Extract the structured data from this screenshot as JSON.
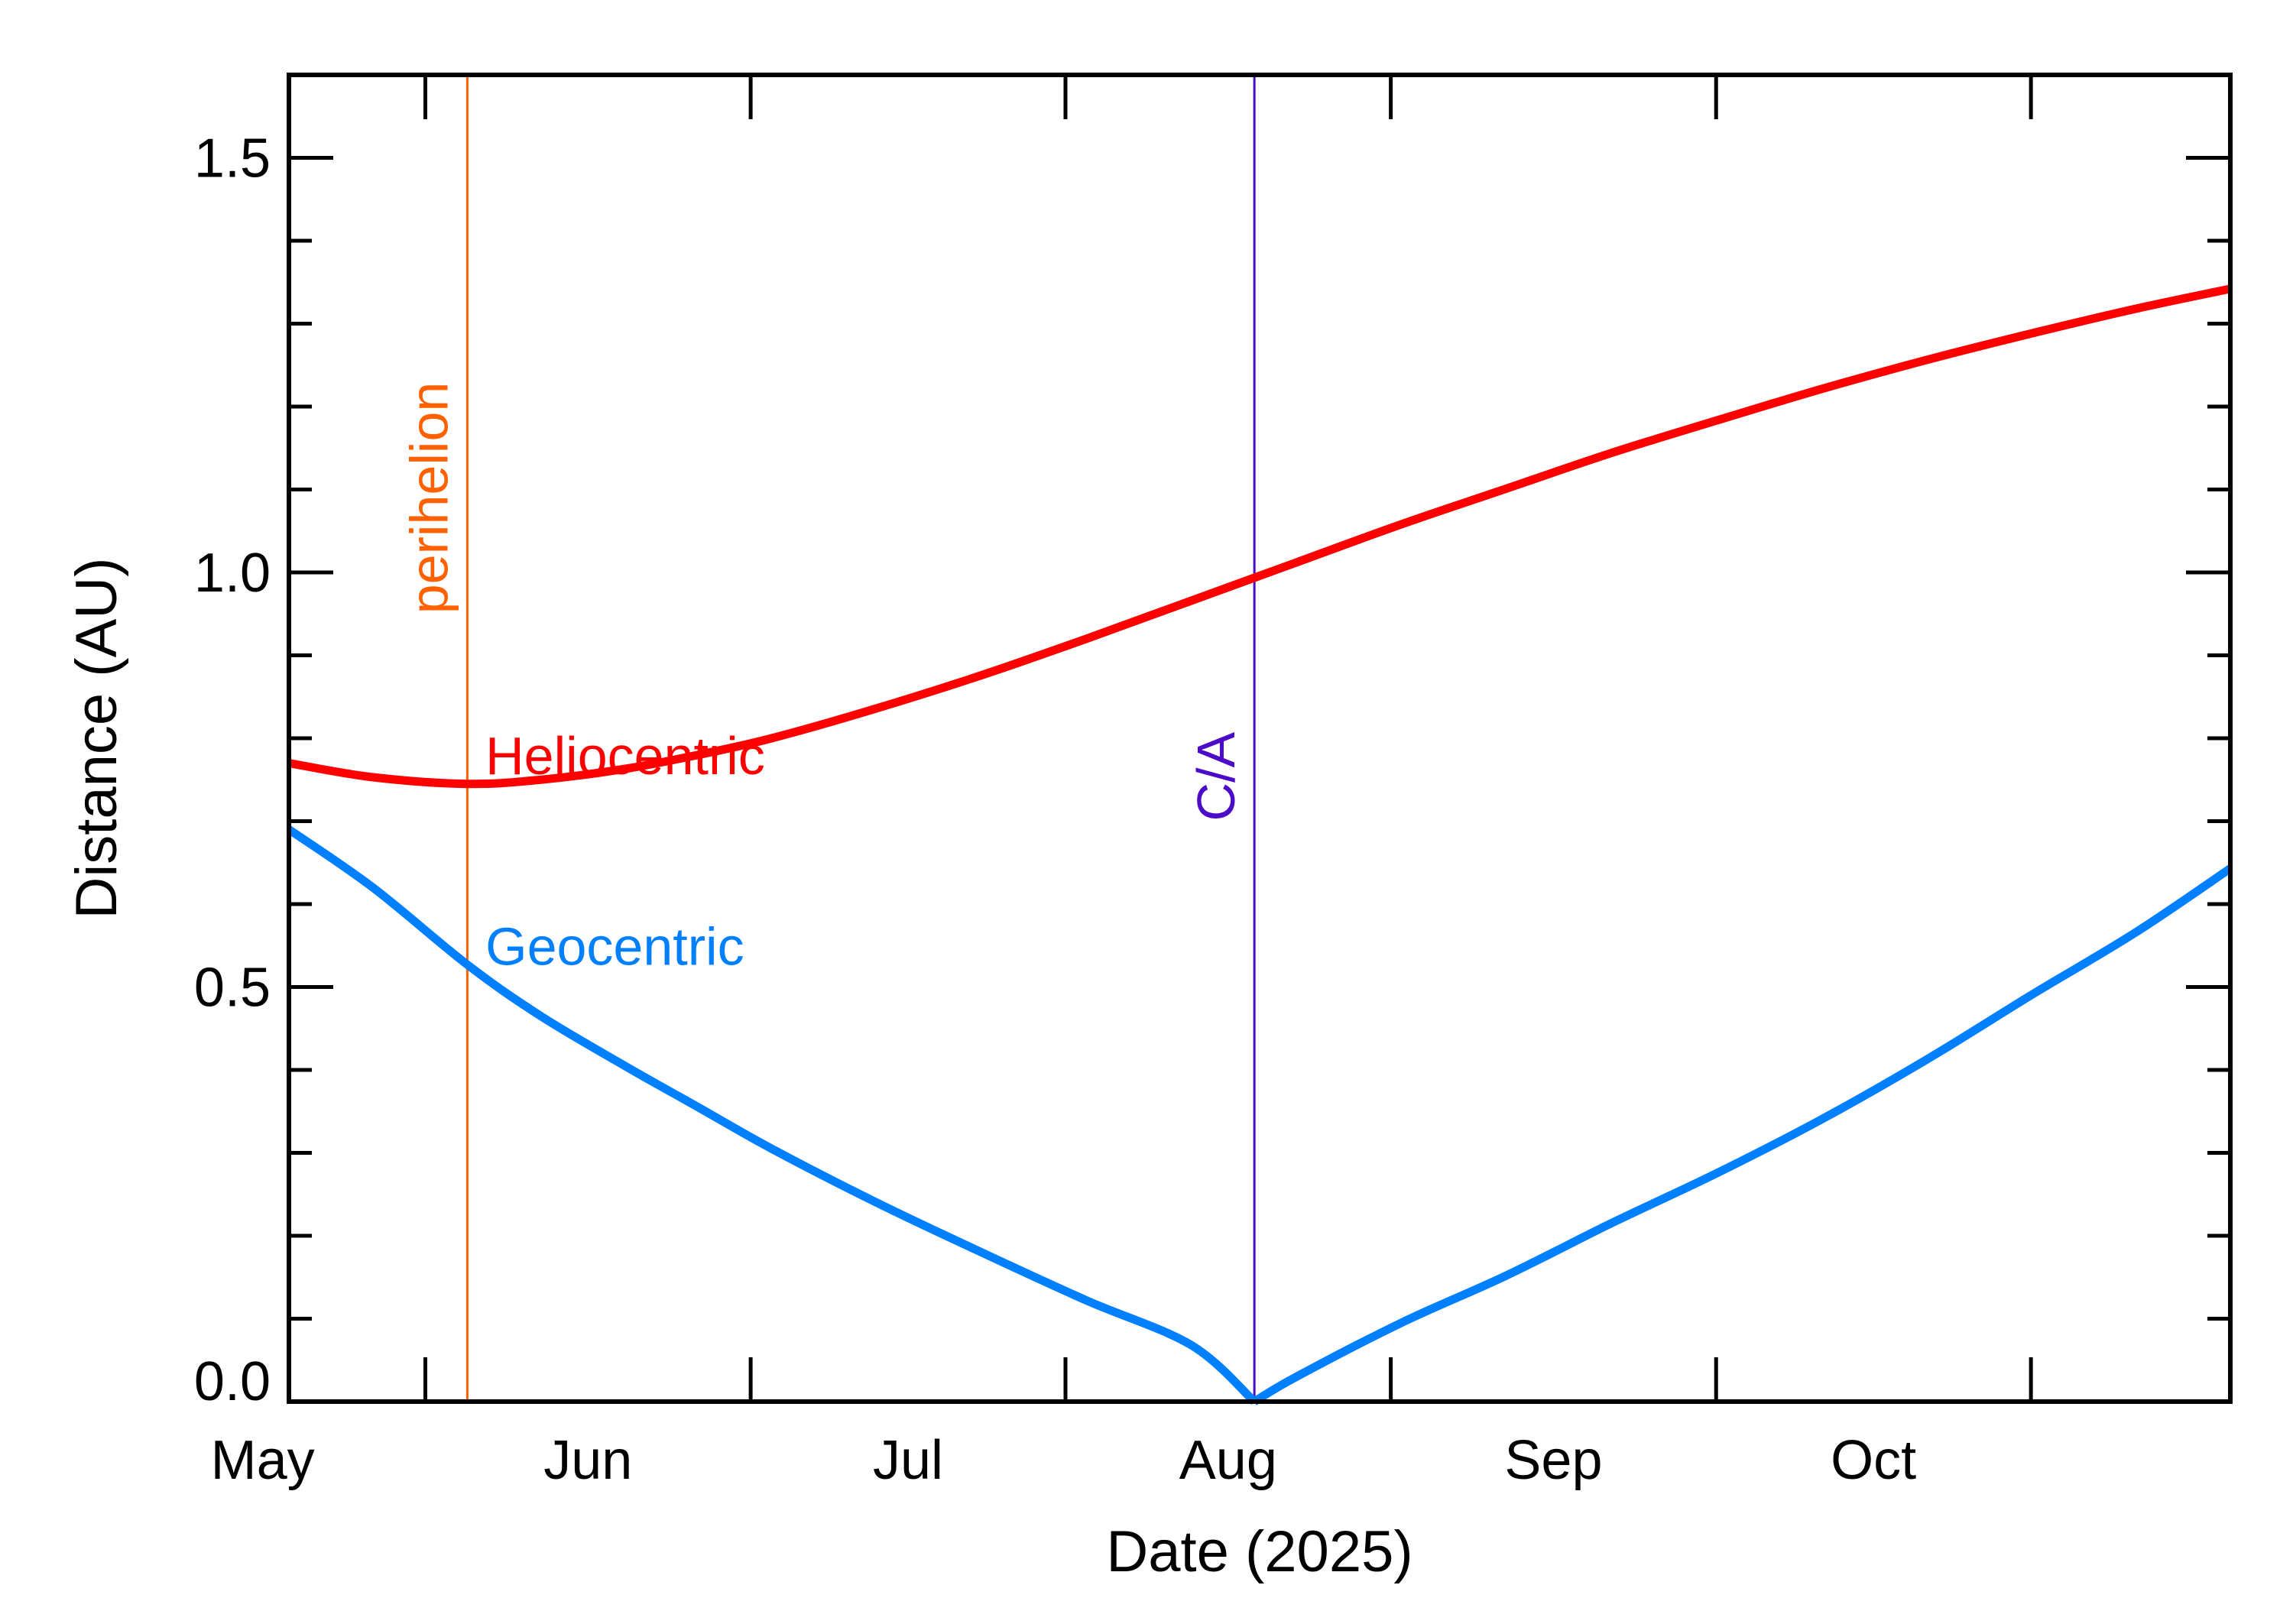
{
  "chart_data": {
    "type": "line",
    "xlabel": "Date (2025)",
    "ylabel": "Distance (AU)",
    "xlim": [
      "2025-04-18",
      "2025-10-20"
    ],
    "ylim": [
      0.0,
      1.6
    ],
    "yticks": [
      0.0,
      0.5,
      1.0,
      1.5
    ],
    "ytick_labels": [
      "0.0",
      "0.5",
      "1.0",
      "1.5"
    ],
    "y_minor_step": 0.1,
    "xticks": [
      "2025-05-01",
      "2025-06-01",
      "2025-07-01",
      "2025-08-01",
      "2025-09-01",
      "2025-10-01"
    ],
    "xtick_labels": [
      "May",
      "Jun",
      "Jul",
      "Aug",
      "Sep",
      "Oct"
    ],
    "grid": false,
    "legend": "none",
    "series": [
      {
        "name": "Heliocentric",
        "color": "#ff0000",
        "x": [
          "2025-04-18",
          "2025-04-26",
          "2025-05-05",
          "2025-05-12",
          "2025-05-20",
          "2025-05-27",
          "2025-06-03",
          "2025-06-13",
          "2025-06-23",
          "2025-07-03",
          "2025-07-13",
          "2025-07-23",
          "2025-08-02",
          "2025-08-12",
          "2025-08-22",
          "2025-09-01",
          "2025-09-11",
          "2025-09-21",
          "2025-10-01",
          "2025-10-11",
          "2025-10-20"
        ],
        "y": [
          0.77,
          0.753,
          0.745,
          0.75,
          0.763,
          0.78,
          0.8,
          0.836,
          0.876,
          0.92,
          0.966,
          1.012,
          1.058,
          1.101,
          1.144,
          1.183,
          1.221,
          1.256,
          1.288,
          1.318,
          1.342
        ]
      },
      {
        "name": "Geocentric",
        "color": "#0080ff",
        "x": [
          "2025-04-18",
          "2025-04-26",
          "2025-05-05",
          "2025-05-12",
          "2025-05-20",
          "2025-05-27",
          "2025-06-03",
          "2025-06-13",
          "2025-06-23",
          "2025-07-03",
          "2025-07-13",
          "2025-07-19",
          "2025-07-23",
          "2025-08-02",
          "2025-08-12",
          "2025-08-22",
          "2025-09-01",
          "2025-09-11",
          "2025-09-21",
          "2025-10-01",
          "2025-10-11",
          "2025-10-20"
        ],
        "y": [
          0.69,
          0.62,
          0.527,
          0.465,
          0.405,
          0.355,
          0.305,
          0.24,
          0.18,
          0.122,
          0.068,
          0.0,
          0.03,
          0.095,
          0.152,
          0.215,
          0.275,
          0.34,
          0.412,
          0.49,
          0.566,
          0.643
        ]
      }
    ],
    "series_labels": [
      {
        "text": "Heliocentric",
        "color": "#ff0000",
        "x": "2025-05-06",
        "y": 0.775
      },
      {
        "text": "Geocentric",
        "color": "#0080ff",
        "x": "2025-05-06",
        "y": 0.545
      }
    ],
    "markers": [
      {
        "label": "perihelion",
        "x": "2025-05-05",
        "color": "#ff6000",
        "label_y": 0.95
      },
      {
        "label": "C/A",
        "x": "2025-07-19",
        "color": "#4b0bc8",
        "label_y": 0.7
      }
    ]
  }
}
